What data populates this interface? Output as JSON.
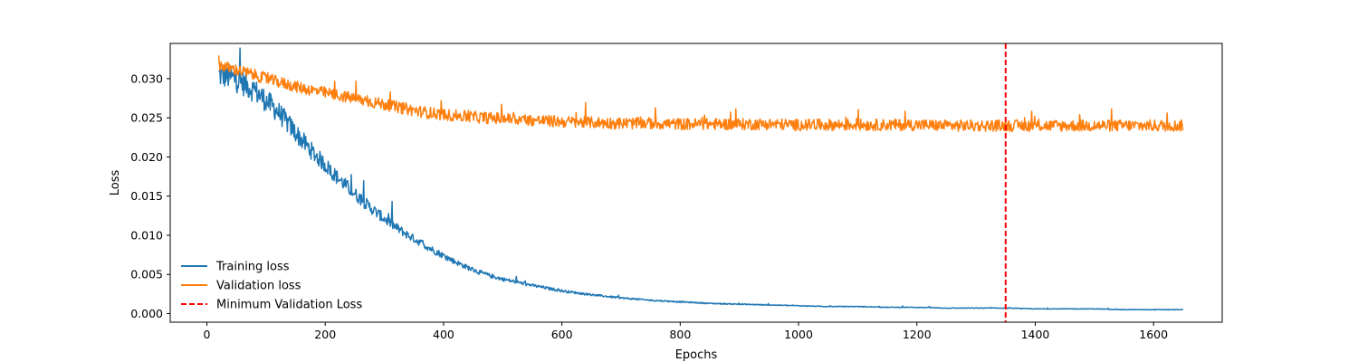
{
  "chart_data": {
    "type": "line",
    "title": "",
    "xlabel": "Epochs",
    "ylabel": "Loss",
    "xlim": [
      -62,
      1716
    ],
    "ylim": [
      -0.0011,
      0.0345
    ],
    "xticks": [
      0,
      200,
      400,
      600,
      800,
      1000,
      1200,
      1400,
      1600
    ],
    "xtick_labels": [
      "0",
      "200",
      "400",
      "600",
      "800",
      "1000",
      "1200",
      "1400",
      "1600"
    ],
    "yticks": [
      0.0,
      0.005,
      0.01,
      0.015,
      0.02,
      0.025,
      0.03
    ],
    "ytick_labels": [
      "0.000",
      "0.005",
      "0.010",
      "0.015",
      "0.020",
      "0.025",
      "0.030"
    ],
    "grid": false,
    "legend_position": "lower-left",
    "series": [
      {
        "name": "Training loss",
        "color": "#1f77b4",
        "x": [
          20,
          40,
          60,
          80,
          100,
          120,
          140,
          160,
          180,
          200,
          220,
          240,
          260,
          280,
          300,
          320,
          340,
          360,
          380,
          400,
          420,
          440,
          460,
          480,
          500,
          550,
          600,
          650,
          700,
          750,
          800,
          850,
          900,
          950,
          1000,
          1050,
          1100,
          1150,
          1200,
          1250,
          1300,
          1350,
          1400,
          1450,
          1500,
          1550,
          1600,
          1650
        ],
        "y": [
          0.0305,
          0.0302,
          0.0295,
          0.0285,
          0.0272,
          0.0258,
          0.024,
          0.0222,
          0.0205,
          0.019,
          0.0174,
          0.016,
          0.0146,
          0.0133,
          0.0121,
          0.011,
          0.01,
          0.0091,
          0.0082,
          0.0074,
          0.0066,
          0.0059,
          0.0053,
          0.0048,
          0.0044,
          0.0036,
          0.0029,
          0.0024,
          0.002,
          0.0017,
          0.0015,
          0.0013,
          0.0012,
          0.0011,
          0.001,
          0.0009,
          0.0009,
          0.0008,
          0.0008,
          0.0007,
          0.0007,
          0.0007,
          0.0006,
          0.0006,
          0.0006,
          0.0005,
          0.0005,
          0.0005
        ]
      },
      {
        "name": "Validation loss",
        "color": "#ff7f0e",
        "x": [
          20,
          40,
          60,
          80,
          100,
          120,
          140,
          160,
          180,
          200,
          220,
          240,
          260,
          280,
          300,
          320,
          340,
          360,
          380,
          400,
          450,
          500,
          550,
          600,
          650,
          700,
          750,
          800,
          850,
          900,
          950,
          1000,
          1050,
          1100,
          1150,
          1200,
          1250,
          1300,
          1350,
          1400,
          1450,
          1500,
          1550,
          1600,
          1650
        ],
        "y": [
          0.0318,
          0.0313,
          0.0309,
          0.0305,
          0.03,
          0.0296,
          0.0292,
          0.0288,
          0.0285,
          0.0282,
          0.0279,
          0.0276,
          0.0273,
          0.027,
          0.0267,
          0.0264,
          0.0261,
          0.0258,
          0.0256,
          0.0254,
          0.0251,
          0.0249,
          0.0247,
          0.0245,
          0.0244,
          0.0243,
          0.0243,
          0.0242,
          0.0242,
          0.0242,
          0.0242,
          0.0241,
          0.0241,
          0.0241,
          0.0241,
          0.0241,
          0.024,
          0.024,
          0.024,
          0.024,
          0.024,
          0.024,
          0.024,
          0.024,
          0.024
        ]
      }
    ],
    "vline": {
      "name": "Minimum Validation Loss",
      "x": 1350,
      "color": "#ff0000",
      "style": "dashed"
    }
  }
}
